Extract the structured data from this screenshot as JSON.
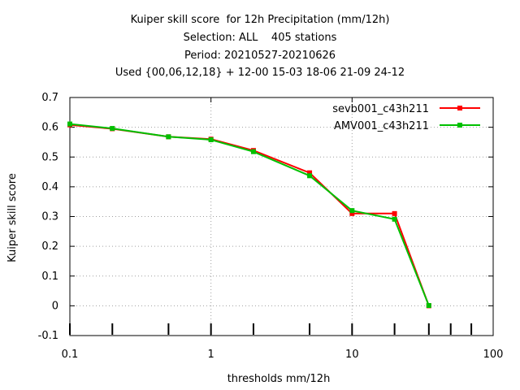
{
  "chart_data": {
    "type": "line",
    "title_lines": [
      "Kuiper skill score  for 12h Precipitation (mm/12h)",
      "Selection: ALL    405 stations",
      "Period: 20210527-20210626",
      "Used {00,06,12,18} + 12-00 15-03 18-06 21-09 24-12"
    ],
    "xlabel": "thresholds mm/12h",
    "ylabel": "Kuiper skill score",
    "xscale": "log",
    "xlim": [
      0.1,
      100
    ],
    "ylim": [
      -0.1,
      0.7
    ],
    "xticks": [
      0.1,
      1,
      10,
      100
    ],
    "xtick_labels": [
      "0.1",
      "1",
      "10",
      "100"
    ],
    "yticks": [
      -0.1,
      0,
      0.1,
      0.2,
      0.3,
      0.4,
      0.5,
      0.6,
      0.7
    ],
    "ytick_labels": [
      "-0.1",
      "0",
      "0.1",
      "0.2",
      "0.3",
      "0.4",
      "0.5",
      "0.6",
      "0.7"
    ],
    "x_minor_marks": [
      0.1,
      0.2,
      0.5,
      1,
      2,
      5,
      10,
      20,
      35,
      50,
      70
    ],
    "grid": true,
    "legend_position": "top-right",
    "series": [
      {
        "name": "sevb001_c43h211",
        "color": "#ff0000",
        "x": [
          0.1,
          0.2,
          0.5,
          1,
          2,
          5,
          10,
          20,
          35
        ],
        "y": [
          0.608,
          0.595,
          0.568,
          0.56,
          0.522,
          0.447,
          0.31,
          0.31,
          0.0
        ]
      },
      {
        "name": "AMV001_c43h211",
        "color": "#00c000",
        "x": [
          0.1,
          0.2,
          0.5,
          1,
          2,
          5,
          10,
          20,
          35
        ],
        "y": [
          0.611,
          0.596,
          0.568,
          0.558,
          0.518,
          0.437,
          0.32,
          0.291,
          0.001
        ]
      }
    ]
  }
}
